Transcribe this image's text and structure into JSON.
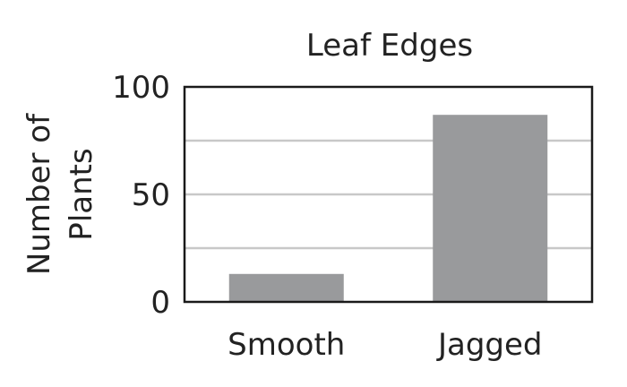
{
  "chart_data": {
    "type": "bar",
    "title": "Leaf Edges",
    "xlabel": "",
    "ylabel": "Number of Plants",
    "ylabel_lines": [
      "Number of",
      "Plants"
    ],
    "categories": [
      "Smooth",
      "Jagged"
    ],
    "values": [
      13,
      87
    ],
    "ylim": [
      0,
      100
    ],
    "yticks": [
      0,
      50,
      100
    ],
    "ytick_labels": [
      "0",
      "50",
      "100"
    ],
    "gridlines": [
      25,
      50,
      75
    ],
    "grid": true,
    "legend": "none",
    "bar_color": "#999a9c",
    "grid_color": "#c8c8c8",
    "axis_color": "#1a1a1a"
  }
}
